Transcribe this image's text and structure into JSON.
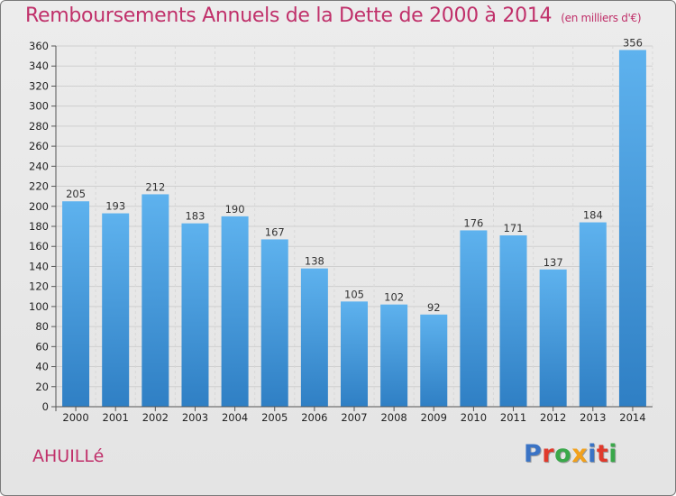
{
  "header": {
    "title": "Remboursements Annuels de la Dette de 2000 à 2014",
    "subtitle": "(en milliers d'€)"
  },
  "footer": {
    "commune": "AHUILLé",
    "logo_letters": [
      "P",
      "r",
      "o",
      "x",
      "i",
      "t",
      "i"
    ],
    "logo_colors": [
      "#3a73c5",
      "#e03a2c",
      "#3aa84a",
      "#f2a11c",
      "#3a73c5",
      "#e03a2c",
      "#3aa84a"
    ]
  },
  "chart_data": {
    "type": "bar",
    "title": "Remboursements Annuels de la Dette de 2000 à 2014",
    "xlabel": "",
    "ylabel": "",
    "ylim": [
      0,
      360
    ],
    "yticks": [
      0,
      20,
      40,
      60,
      80,
      100,
      120,
      140,
      160,
      180,
      200,
      220,
      240,
      260,
      280,
      300,
      320,
      340,
      360
    ],
    "categories": [
      "2000",
      "2001",
      "2002",
      "2003",
      "2004",
      "2005",
      "2006",
      "2007",
      "2008",
      "2009",
      "2010",
      "2011",
      "2012",
      "2013",
      "2014"
    ],
    "values": [
      205,
      193,
      212,
      183,
      190,
      167,
      138,
      105,
      102,
      92,
      176,
      171,
      137,
      184,
      356
    ],
    "bar_color": "#4a9de0",
    "grid": true
  }
}
